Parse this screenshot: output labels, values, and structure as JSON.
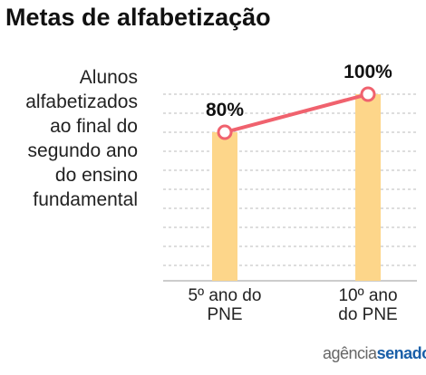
{
  "chart_data": {
    "type": "bar_line",
    "title": "Metas de alfabetização",
    "ylabel": [
      "Alunos",
      "alfabetizados",
      "ao final do",
      "segundo ano",
      "do ensino",
      "fundamental"
    ],
    "categories": [
      "5º ano do PNE",
      "10º ano do PNE"
    ],
    "values": [
      80,
      100
    ],
    "value_labels": [
      "80%",
      "100%"
    ],
    "bar_color": "#fdd68a",
    "line_color": "#f0626e",
    "ylim": [
      0,
      100
    ],
    "yticks": [
      10,
      20,
      30,
      40,
      50,
      60,
      70,
      80,
      90,
      100
    ],
    "grid": true
  },
  "branding": {
    "first": "agência",
    "second": "senado"
  }
}
